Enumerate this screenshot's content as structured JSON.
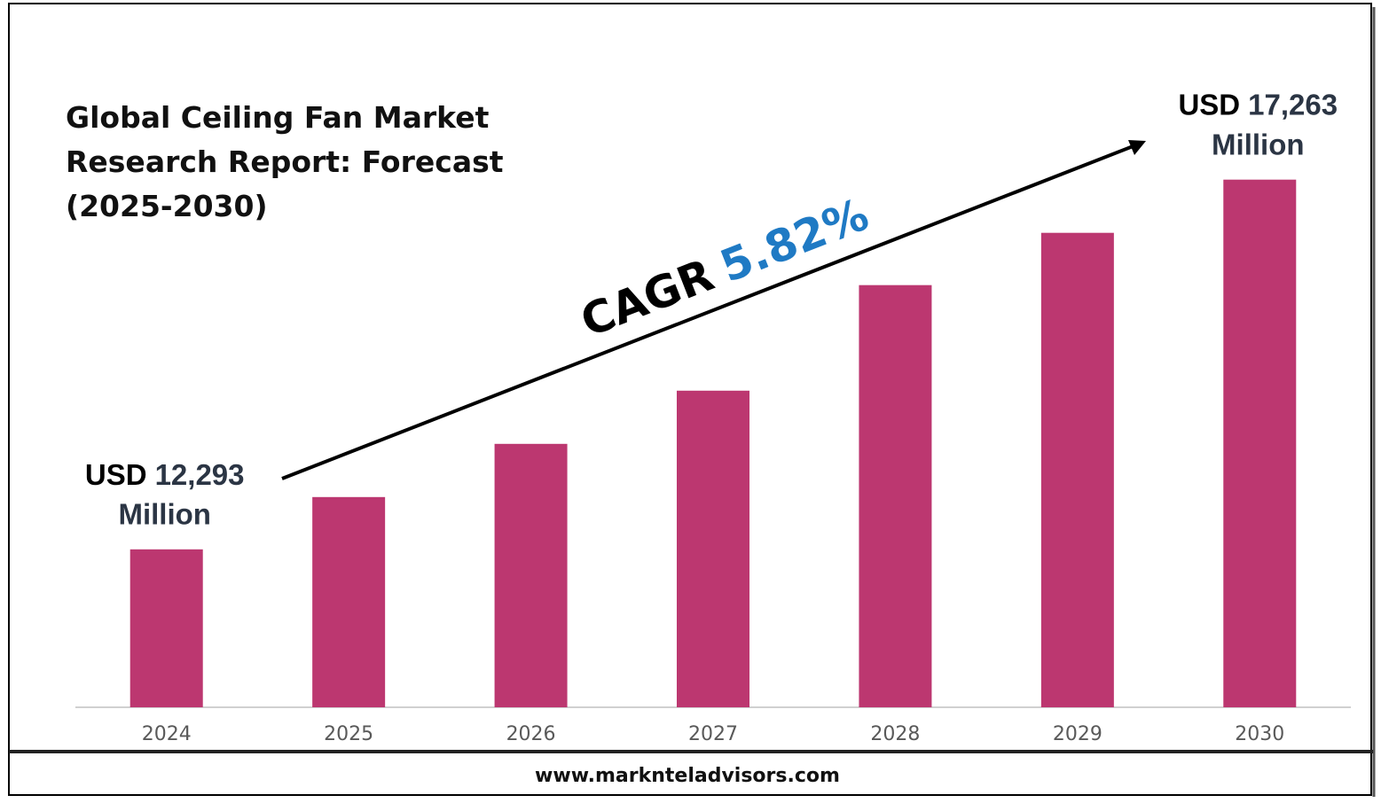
{
  "chart_data": {
    "type": "bar",
    "title": "Global Ceiling Fan Market Research Report: Forecast (2025-2030)",
    "categories": [
      "2024",
      "2025",
      "2026",
      "2027",
      "2028",
      "2029",
      "2030"
    ],
    "values": [
      12293,
      12996,
      13711,
      14426,
      15845,
      16548,
      17263
    ],
    "value_labels": [
      "12,293",
      null,
      null,
      null,
      null,
      null,
      "17,263"
    ],
    "value_label_prefix": "USD",
    "value_label_suffix": "Million",
    "color": "#bc3770",
    "ylim": [
      10170,
      17700
    ],
    "cagr_label": "CAGR",
    "cagr_value": "5.82%",
    "source": "www.marknteladvisors.com"
  }
}
